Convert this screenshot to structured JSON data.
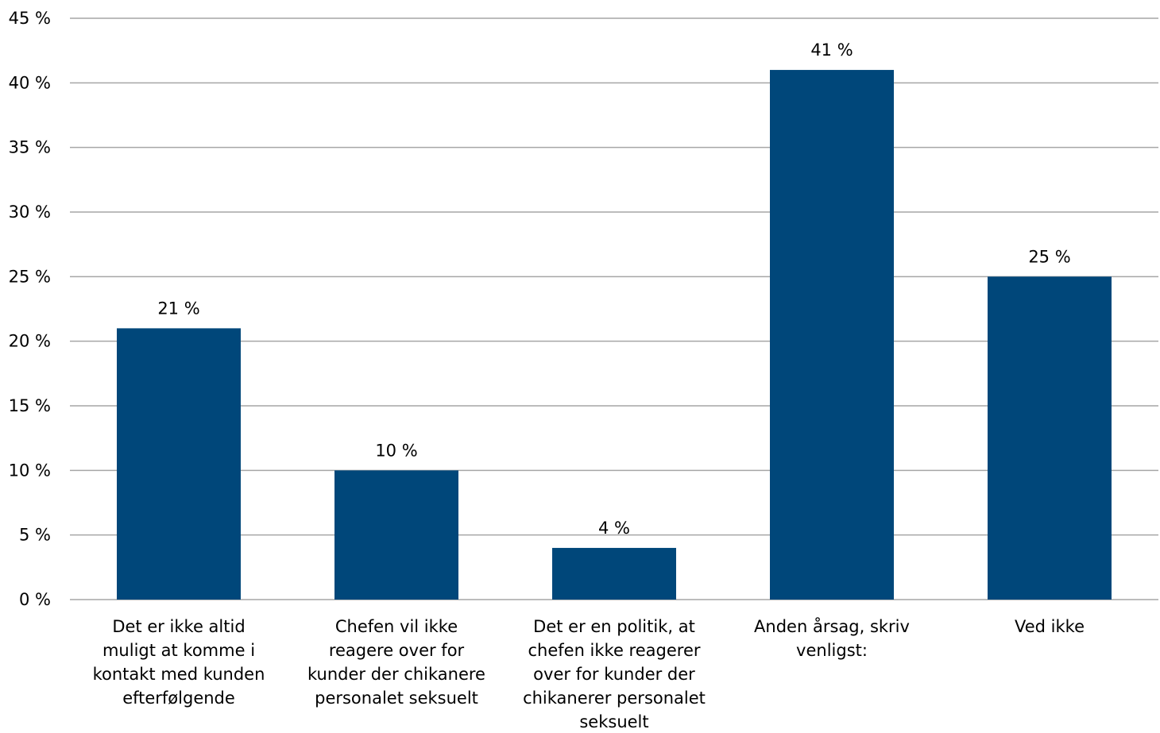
{
  "chart_data": {
    "type": "bar",
    "title": "",
    "xlabel": "",
    "ylabel": "",
    "categories": [
      [
        "Det er ikke altid",
        "muligt at komme i",
        "kontakt med kunden",
        "efterfølgende"
      ],
      [
        "Chefen vil ikke",
        "reagere over for",
        "kunder der chikanere",
        "personalet seksuelt"
      ],
      [
        "Det er en politik, at",
        "chefen ikke reagerer",
        "over for kunder der",
        "chikanerer personalet",
        "seksuelt"
      ],
      [
        "Anden årsag, skriv",
        "venligst:"
      ],
      [
        "Ved ikke"
      ]
    ],
    "values": [
      21,
      10,
      4,
      41,
      25
    ],
    "data_labels": [
      "21 %",
      "10 %",
      "4 %",
      "41 %",
      "25 %"
    ],
    "ylim": [
      0,
      45
    ],
    "y_ticks": [
      0,
      5,
      10,
      15,
      20,
      25,
      30,
      35,
      40,
      45
    ],
    "y_tick_labels": [
      "0 %",
      "5 %",
      "10 %",
      "15 %",
      "20 %",
      "25 %",
      "30 %",
      "35 %",
      "40 %",
      "45 %"
    ],
    "grid": true,
    "legend": "none",
    "colors": {
      "bar": "#00477A",
      "grid": "#A6A6A6",
      "text": "#000000"
    }
  }
}
